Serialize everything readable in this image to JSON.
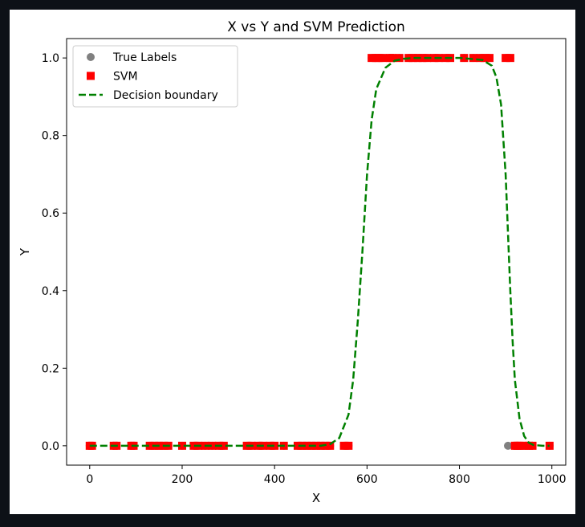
{
  "chart_data": {
    "type": "scatter",
    "title": "X vs Y and SVM Prediction",
    "xlabel": "X",
    "ylabel": "Y",
    "xlim": [
      -50,
      1030
    ],
    "ylim": [
      -0.05,
      1.05
    ],
    "xticks": [
      0,
      200,
      400,
      600,
      800,
      1000
    ],
    "xtick_labels": [
      "0",
      "200",
      "400",
      "600",
      "800",
      "1000"
    ],
    "yticks": [
      0.0,
      0.2,
      0.4,
      0.6,
      0.8,
      1.0
    ],
    "ytick_labels": [
      "0.0",
      "0.2",
      "0.4",
      "0.6",
      "0.8",
      "1.0"
    ],
    "grid": false,
    "legend_position": "top-left",
    "legend": [
      {
        "label": "True Labels",
        "marker": "circle",
        "color": "#808080"
      },
      {
        "label": "SVM",
        "marker": "square",
        "color": "#ff0000"
      },
      {
        "label": "Decision boundary",
        "marker": "dashed-line",
        "color": "#008000"
      }
    ],
    "series": [
      {
        "name": "True Labels",
        "kind": "scatter",
        "marker": "circle",
        "color": "#808080",
        "x": [
          0,
          5,
          52,
          58,
          90,
          95,
          130,
          140,
          150,
          160,
          170,
          200,
          225,
          235,
          250,
          265,
          280,
          290,
          340,
          350,
          365,
          375,
          390,
          400,
          420,
          450,
          460,
          470,
          480,
          490,
          500,
          510,
          520,
          550,
          560,
          610,
          620,
          625,
          635,
          650,
          655,
          670,
          690,
          700,
          710,
          720,
          730,
          745,
          755,
          770,
          780,
          810,
          830,
          845,
          855,
          865,
          900,
          905,
          910,
          920,
          925,
          930,
          940,
          950,
          958,
          995
        ],
        "y": [
          0,
          0,
          0,
          0,
          0,
          0,
          0,
          0,
          0,
          0,
          0,
          0,
          0,
          0,
          0,
          0,
          0,
          0,
          0,
          0,
          0,
          0,
          0,
          0,
          0,
          0,
          0,
          0,
          0,
          0,
          0,
          0,
          0,
          0,
          0,
          1,
          1,
          1,
          1,
          1,
          1,
          1,
          1,
          1,
          1,
          1,
          1,
          1,
          1,
          1,
          1,
          1,
          1,
          1,
          1,
          1,
          1,
          0,
          1,
          0,
          0,
          0,
          0,
          0,
          0,
          0
        ]
      },
      {
        "name": "SVM",
        "kind": "scatter",
        "marker": "square",
        "color": "#ff0000",
        "x": [
          0,
          5,
          52,
          58,
          90,
          95,
          130,
          140,
          150,
          160,
          170,
          200,
          225,
          235,
          250,
          265,
          280,
          290,
          340,
          350,
          365,
          375,
          390,
          400,
          420,
          450,
          460,
          470,
          480,
          490,
          500,
          510,
          520,
          550,
          560,
          610,
          620,
          625,
          635,
          650,
          655,
          670,
          690,
          700,
          710,
          720,
          730,
          745,
          755,
          770,
          780,
          810,
          830,
          845,
          855,
          865,
          900,
          910,
          920,
          925,
          930,
          940,
          950,
          958,
          995
        ],
        "y": [
          0,
          0,
          0,
          0,
          0,
          0,
          0,
          0,
          0,
          0,
          0,
          0,
          0,
          0,
          0,
          0,
          0,
          0,
          0,
          0,
          0,
          0,
          0,
          0,
          0,
          0,
          0,
          0,
          0,
          0,
          0,
          0,
          0,
          0,
          0,
          1,
          1,
          1,
          1,
          1,
          1,
          1,
          1,
          1,
          1,
          1,
          1,
          1,
          1,
          1,
          1,
          1,
          1,
          1,
          1,
          1,
          1,
          1,
          0,
          0,
          0,
          0,
          0,
          0,
          0
        ]
      },
      {
        "name": "Decision boundary",
        "kind": "line",
        "style": "dashed",
        "color": "#008000",
        "x": [
          0,
          100,
          200,
          300,
          400,
          500,
          520,
          540,
          560,
          570,
          580,
          590,
          600,
          610,
          620,
          640,
          660,
          680,
          700,
          750,
          800,
          850,
          870,
          880,
          890,
          900,
          905,
          910,
          915,
          920,
          930,
          940,
          950,
          960,
          980,
          995
        ],
        "y": [
          0,
          0,
          0,
          0,
          0,
          0,
          0.004,
          0.02,
          0.08,
          0.17,
          0.32,
          0.5,
          0.7,
          0.84,
          0.92,
          0.975,
          0.993,
          0.998,
          1.0,
          1.0,
          1.0,
          0.995,
          0.98,
          0.95,
          0.88,
          0.7,
          0.55,
          0.4,
          0.27,
          0.17,
          0.07,
          0.025,
          0.008,
          0.002,
          0.0,
          0.0
        ]
      }
    ]
  }
}
